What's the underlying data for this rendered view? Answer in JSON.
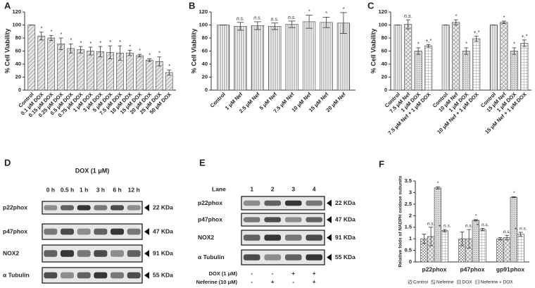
{
  "chart_data": [
    {
      "type": "bar",
      "panel": "A",
      "ylabel": "% Cell Viability",
      "pattern": "diagonal",
      "categories": [
        "Control",
        "0.1 μM DOX",
        "0.15 μM DOX",
        "0.25 μM DOX",
        "0.5 μM DOX",
        "0.75 μM DOX",
        "1 μM DOX",
        "3 μM DOX",
        "5 μM DOX",
        "7.5 μM DOX",
        "10 μM DOX",
        "15 μM DOX",
        "20 μM DOX",
        "25 μM DOX",
        "50 μM DOX"
      ],
      "values": [
        100,
        83,
        80,
        71,
        64,
        62,
        60,
        59,
        58,
        57,
        57,
        53,
        46,
        44,
        27
      ],
      "errors": [
        0,
        6,
        4,
        9,
        7,
        5,
        6,
        8,
        10,
        11,
        4,
        2,
        2,
        7,
        4
      ],
      "annotations": [
        null,
        "*",
        "*",
        "*",
        "*",
        "*",
        "*",
        "*",
        "*",
        "*",
        "*",
        "*",
        "*",
        "*",
        "*"
      ],
      "ylim": [
        0,
        120
      ],
      "yticks": [
        0,
        20,
        40,
        60,
        80,
        100,
        120
      ]
    },
    {
      "type": "bar",
      "panel": "B",
      "ylabel": "% Cell Viability",
      "pattern": "vertical",
      "categories": [
        "Control",
        "1 μM Nef",
        "2.5 μM Nef",
        "5 μM Nef",
        "7.5 μM Nef",
        "10 μM Nef",
        "15 μM Nef",
        "20 μM Nef"
      ],
      "values": [
        100,
        98,
        99,
        98,
        101,
        105,
        104,
        103
      ],
      "errors": [
        0,
        6,
        6,
        5,
        5,
        10,
        8,
        16
      ],
      "annotations": [
        null,
        "n.s.",
        "n.s.",
        "n.s.",
        "n.s.",
        "*",
        "*",
        "*"
      ],
      "ylim": [
        0,
        120
      ],
      "yticks": [
        0,
        20,
        40,
        60,
        80,
        100,
        120
      ]
    },
    {
      "type": "bar",
      "panel": "C",
      "ylabel": "% Cell Viability",
      "patterns": [
        "vertical",
        "cross",
        "dots",
        "grid"
      ],
      "categories": [
        "Control",
        "7.5 μM Nef",
        "1 μM DOX",
        "7.5 μM Nef + 1 μM DOX",
        "Control",
        "10 μM Nef",
        "1 μM DOX",
        "10 μM Nef + 1 μM DOX",
        "Control",
        "15 μM Nef",
        "1 μM DOX",
        "15 μM Nef + 1 μM DOX"
      ],
      "values": [
        100,
        101,
        60,
        68,
        100,
        104,
        60,
        79,
        100,
        104,
        60,
        72
      ],
      "errors": [
        0,
        7,
        5,
        2,
        0,
        4,
        5,
        4,
        0,
        2,
        5,
        5
      ],
      "annotations": [
        null,
        "n.s.",
        "*",
        "+,*",
        null,
        "*",
        "*",
        "+,*",
        null,
        "*",
        "*",
        "+,*"
      ],
      "ylim": [
        0,
        120
      ],
      "yticks": [
        0,
        20,
        40,
        60,
        80,
        100,
        120
      ]
    },
    {
      "type": "grouped_bar",
      "panel": "F",
      "ylabel": "Relative folds of NADPH oxidase subunits",
      "categories": [
        "p22phox",
        "p47phox",
        "gp91phox"
      ],
      "series": [
        {
          "name": "Control",
          "pattern": "checker",
          "values": [
            1,
            1,
            1
          ],
          "errors": [
            0.2,
            0.3,
            0.05
          ]
        },
        {
          "name": "Neferine",
          "pattern": "cross",
          "values": [
            1.1,
            1,
            1.05
          ],
          "errors": [
            0.4,
            0.4,
            0.1
          ],
          "annotations": [
            "n.s.",
            "n.s.",
            "n.s."
          ]
        },
        {
          "name": "DOX",
          "pattern": "dots",
          "values": [
            3.2,
            1.8,
            2.8
          ],
          "errors": [
            0.05,
            0.03,
            0.02
          ],
          "annotations": [
            "*",
            "*",
            "*"
          ]
        },
        {
          "name": "Neferine + DOX",
          "pattern": "grid",
          "values": [
            1.35,
            1.4,
            1.2
          ],
          "errors": [
            0.05,
            0.05,
            0.08
          ],
          "annotations": [
            "+, n.s.",
            "+, n.s.",
            "+, n.s."
          ]
        }
      ],
      "ylim": [
        0,
        3.5
      ],
      "yticks": [
        0,
        0.5,
        1,
        1.5,
        2,
        2.5,
        3,
        3.5
      ]
    }
  ],
  "blots": [
    {
      "panel": "D",
      "title": "DOX (1 μM)",
      "lanes": [
        "0 h",
        "0.5 h",
        "1 h",
        "3 h",
        "6 h",
        "12 h"
      ],
      "rows": [
        {
          "name": "p22phox",
          "size": "22 KDa"
        },
        {
          "name": "p47phox",
          "size": "47 KDa"
        },
        {
          "name": "NOX2",
          "size": "91 KDa"
        },
        {
          "name": "α Tubulin",
          "size": "55 KDa"
        }
      ]
    },
    {
      "panel": "E",
      "lane_title": "Lane",
      "lanes": [
        "1",
        "2",
        "3",
        "4"
      ],
      "rows": [
        {
          "name": "p22phox",
          "size": "22 KDa"
        },
        {
          "name": "p47phox",
          "size": "47 KDa"
        },
        {
          "name": "NOX2",
          "size": "91 KDa"
        },
        {
          "name": "α Tubulin",
          "size": "55 KDa"
        }
      ],
      "treatments": [
        {
          "name": "DOX (1 μM)",
          "signs": [
            "-",
            "-",
            "+",
            "+"
          ]
        },
        {
          "name": "Neferine (10 μM)",
          "signs": [
            "-",
            "+",
            "-",
            "+"
          ]
        }
      ]
    }
  ]
}
